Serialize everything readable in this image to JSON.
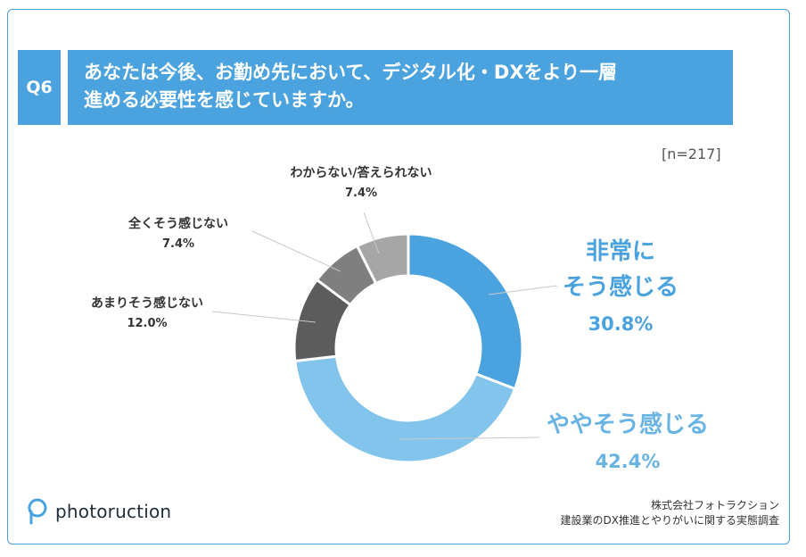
{
  "question": {
    "badge": "Q6",
    "line1": "あなたは今後、お勤め先において、デジタル化・DXをより一層",
    "line2": "進める必要性を感じていますか。"
  },
  "sample_size": "[n=217]",
  "chart_data": {
    "type": "pie",
    "variant": "donut",
    "slices": [
      {
        "name": "非常にそう感じる",
        "value": 30.8,
        "label": "30.8%",
        "color": "#4aa3de"
      },
      {
        "name": "ややそう感じる",
        "value": 42.4,
        "label": "42.4%",
        "color": "#83c4ec"
      },
      {
        "name": "あまりそう感じない",
        "value": 12.0,
        "label": "12.0%",
        "color": "#5c5c5c"
      },
      {
        "name": "全くそう感じない",
        "value": 7.4,
        "label": "7.4%",
        "color": "#7f7f7f"
      },
      {
        "name": "わからない/答えられない",
        "value": 7.4,
        "label": "7.4%",
        "color": "#a6a6a6"
      }
    ]
  },
  "labels": {
    "very": {
      "line1": "非常に",
      "line2": "そう感じる",
      "pct": "30.8%"
    },
    "somewhat": {
      "name": "ややそう感じる",
      "pct": "42.4%"
    },
    "not_much": {
      "name": "あまりそう感じない",
      "pct": "12.0%"
    },
    "not_at_all": {
      "name": "全くそう感じない",
      "pct": "7.4%"
    },
    "unknown": {
      "name": "わからない/答えられない",
      "pct": "7.4%"
    }
  },
  "footer": {
    "company": "株式会社フォトラクション",
    "survey": "建設業のDX推進とやりがいに関する実態調査",
    "logo_text": "photoruction"
  },
  "colors": {
    "accent": "#4aa3de",
    "light": "#83c4ec"
  }
}
